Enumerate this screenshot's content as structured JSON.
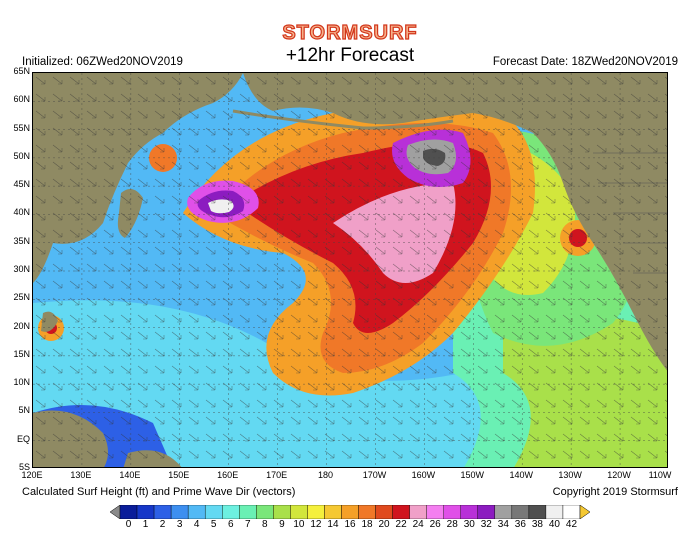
{
  "logo_text": "STORMSURF",
  "subtitle": "+12hr Forecast",
  "initialized": "Initialized: 06ZWed20NOV2019",
  "forecast_date": "Forecast Date: 18ZWed20NOV2019",
  "footer_left": "Calculated Surf Height (ft) and Prime Wave Dir (vectors)",
  "footer_right": "Copyright 2019 Stormsurf",
  "lat_labels": [
    "65N",
    "60N",
    "55N",
    "50N",
    "45N",
    "40N",
    "35N",
    "30N",
    "25N",
    "20N",
    "15N",
    "10N",
    "5N",
    "EQ",
    "5S"
  ],
  "lon_labels": [
    "120E",
    "130E",
    "140E",
    "150E",
    "160E",
    "170E",
    "180",
    "170W",
    "160W",
    "150W",
    "140W",
    "130W",
    "120W",
    "110W"
  ],
  "scale_values": [
    "0",
    "1",
    "2",
    "3",
    "4",
    "5",
    "6",
    "7",
    "8",
    "9",
    "10",
    "12",
    "14",
    "16",
    "18",
    "20",
    "22",
    "24",
    "26",
    "28",
    "30",
    "32",
    "34",
    "36",
    "38",
    "40",
    "42"
  ],
  "scale_colors": [
    "#0a1d9a",
    "#1637c8",
    "#2d60e6",
    "#3d8ff0",
    "#52b9f5",
    "#63d9f2",
    "#6df0e0",
    "#6af0b4",
    "#7ae67a",
    "#a9e04a",
    "#d2e63c",
    "#f5f03c",
    "#f5c832",
    "#f5a028",
    "#f07828",
    "#e04a1e",
    "#d0141e",
    "#f0a0c8",
    "#f47ef0",
    "#e050e8",
    "#b830d8",
    "#8c1cc0",
    "#a0a0a0",
    "#787878",
    "#505050",
    "#f0f0f0",
    "#ffffff"
  ],
  "colors": {
    "land": "#8f8a63",
    "ocean_base": "#63d9f2",
    "logo_fill": "#f6b08a",
    "logo_stroke": "#d2361b"
  }
}
